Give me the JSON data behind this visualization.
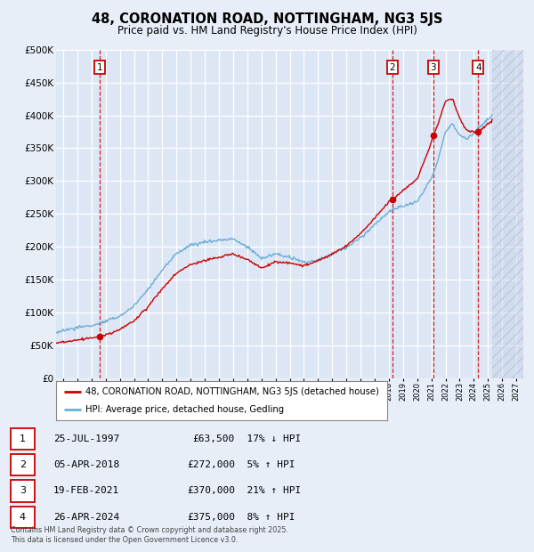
{
  "title": "48, CORONATION ROAD, NOTTINGHAM, NG3 5JS",
  "subtitle": "Price paid vs. HM Land Registry's House Price Index (HPI)",
  "legend_line1": "48, CORONATION ROAD, NOTTINGHAM, NG3 5JS (detached house)",
  "legend_line2": "HPI: Average price, detached house, Gedling",
  "footnote1": "Contains HM Land Registry data © Crown copyright and database right 2025.",
  "footnote2": "This data is licensed under the Open Government Licence v3.0.",
  "sales": [
    {
      "num": 1,
      "date": "25-JUL-1997",
      "price": 63500,
      "pct": "17%",
      "dir": "↓",
      "year": 1997.56
    },
    {
      "num": 2,
      "date": "05-APR-2018",
      "price": 272000,
      "pct": "5%",
      "dir": "↑",
      "year": 2018.26
    },
    {
      "num": 3,
      "date": "19-FEB-2021",
      "price": 370000,
      "pct": "21%",
      "dir": "↑",
      "year": 2021.13
    },
    {
      "num": 4,
      "date": "26-APR-2024",
      "price": 375000,
      "pct": "8%",
      "dir": "↑",
      "year": 2024.32
    }
  ],
  "hpi_color": "#6baed6",
  "sale_color": "#cc0000",
  "bg_color": "#e8eef8",
  "plot_bg": "#dce6f5",
  "grid_color": "#ffffff",
  "ylim": [
    0,
    500000
  ],
  "xlim_start": 1994.5,
  "xlim_end": 2027.5,
  "data_end_year": 2025.3
}
